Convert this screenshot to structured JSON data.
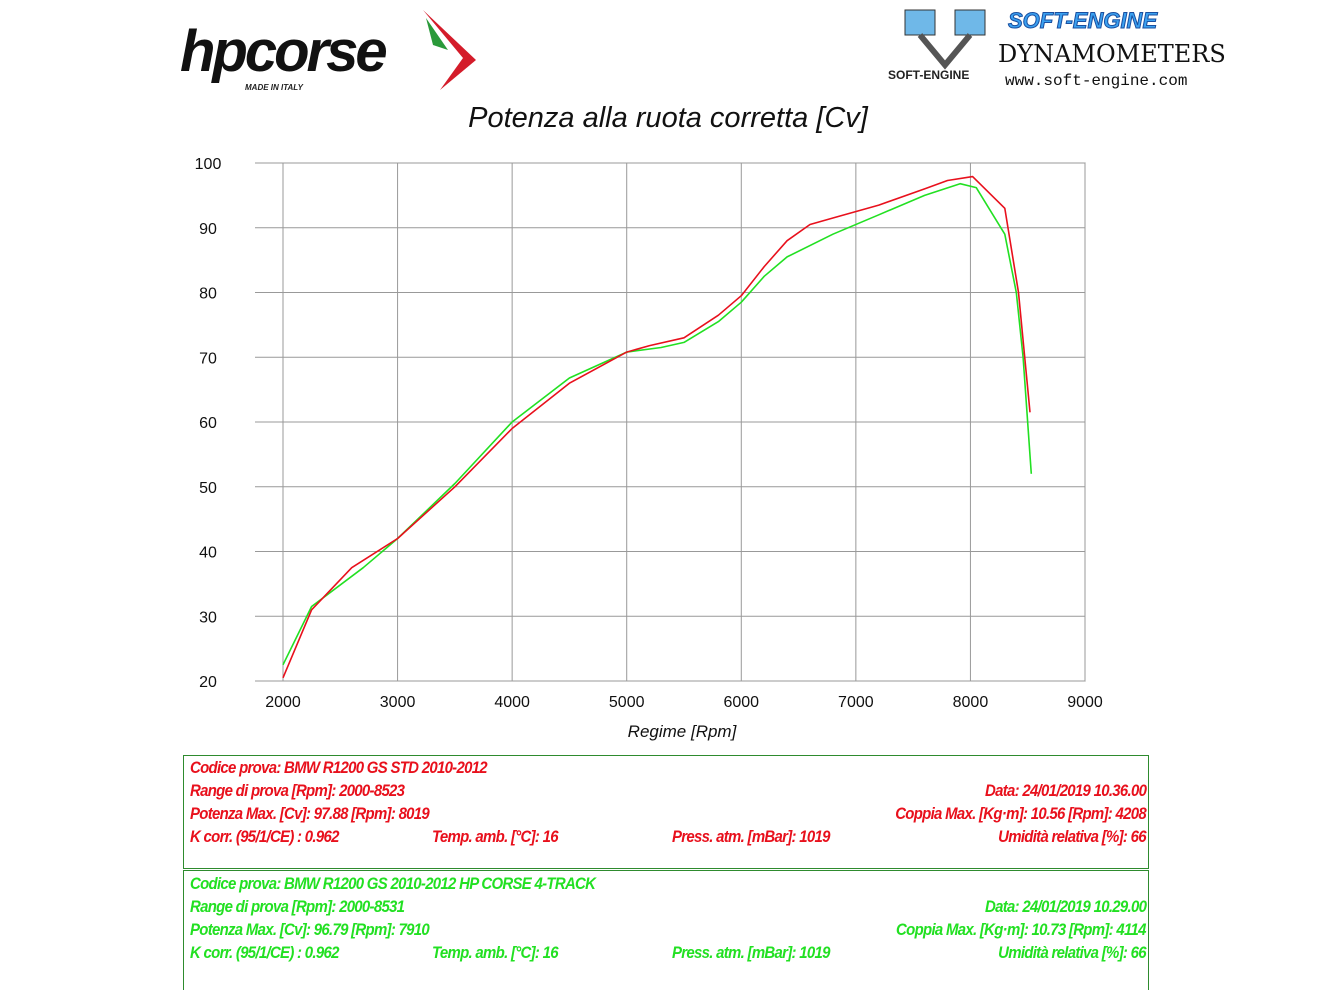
{
  "header": {
    "brand_left": "hpcorse",
    "brand_left_sub": "MADE IN ITALY",
    "brand_right": "SOFT-ENGINE",
    "brand_right_sub": "DYNAMOMETERS",
    "brand_right_url": "www.soft-engine.com",
    "brand_right_mini": "SOFT-ENGINE"
  },
  "chart_data": {
    "type": "line",
    "title": "Potenza alla ruota corretta [Cv]",
    "xlabel": "Regime [Rpm]",
    "ylabel": "",
    "xlim": [
      2000,
      9000
    ],
    "ylim": [
      20,
      100
    ],
    "xticks": [
      2000,
      3000,
      4000,
      5000,
      6000,
      7000,
      8000,
      9000
    ],
    "yticks": [
      20,
      30,
      40,
      50,
      60,
      70,
      80,
      90,
      100
    ],
    "grid": true,
    "series": [
      {
        "name": "BMW R1200 GS STD 2010-2012",
        "color": "#e8101c",
        "x": [
          2000,
          2250,
          2600,
          3000,
          3500,
          4000,
          4500,
          5000,
          5200,
          5500,
          5800,
          6000,
          6200,
          6400,
          6600,
          6800,
          7200,
          7600,
          7800,
          8019,
          8300,
          8420,
          8520
        ],
        "y": [
          20.5,
          31,
          37.5,
          42,
          50,
          59,
          66,
          70.8,
          71.8,
          73,
          76.5,
          79.5,
          84,
          88,
          90.5,
          91.5,
          93.5,
          96,
          97.3,
          97.9,
          93,
          80,
          61.5
        ]
      },
      {
        "name": "BMW R1200 GS 2010-2012 HP CORSE 4-TRACK",
        "color": "#22e022",
        "x": [
          2000,
          2250,
          2700,
          3000,
          3500,
          4000,
          4500,
          5000,
          5300,
          5500,
          5800,
          6000,
          6200,
          6400,
          6800,
          7200,
          7600,
          7910,
          8050,
          8300,
          8400,
          8460,
          8531
        ],
        "y": [
          22.5,
          31.5,
          37.5,
          42,
          50.5,
          60,
          66.8,
          70.8,
          71.5,
          72.3,
          75.5,
          78.5,
          82.5,
          85.5,
          89,
          92,
          95,
          96.8,
          96.2,
          89,
          80,
          70,
          52
        ]
      }
    ]
  },
  "tests": [
    {
      "codice": "Codice prova: BMW R1200 GS STD  2010-2012",
      "range": "Range di prova [Rpm]: 2000-8523",
      "data": "Data: 24/01/2019   10.36.00",
      "potenza": "Potenza Max. [Cv]: 97.88   [Rpm]: 8019",
      "coppia": "Coppia Max. [Kg·m]: 10.56   [Rpm]: 4208",
      "kcorr": "K corr. (95/1/CE) : 0.962",
      "temp": "Temp. amb. [°C]: 16",
      "press": "Press. atm. [mBar]: 1019",
      "umid": "Umidità relativa [%]: 66"
    },
    {
      "codice": "Codice prova: BMW R1200 GS   2010-2012 HP CORSE 4-TRACK",
      "range": "Range di prova [Rpm]: 2000-8531",
      "data": "Data: 24/01/2019   10.29.00",
      "potenza": "Potenza Max. [Cv]: 96.79   [Rpm]: 7910",
      "coppia": "Coppia Max. [Kg·m]: 10.73   [Rpm]: 4114",
      "kcorr": "K corr. (95/1/CE) : 0.962",
      "temp": "Temp. amb. [°C]: 16",
      "press": "Press. atm. [mBar]: 1019",
      "umid": "Umidità relativa [%]: 66"
    }
  ]
}
